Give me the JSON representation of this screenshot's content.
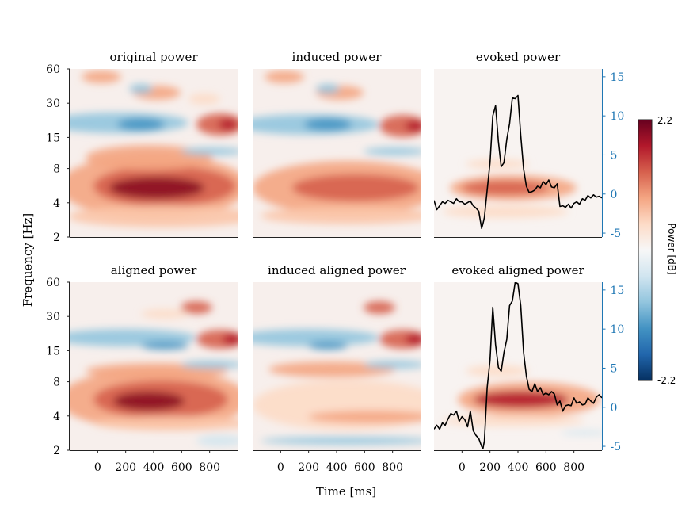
{
  "colors": {
    "evoked_axis": "#1f77b4",
    "trace": "#000000",
    "cmap_low": "#053061",
    "cmap_mid": "#f7f7f7",
    "cmap_high": "#67001f"
  },
  "labels": {
    "ylabel": "Frequency [Hz]",
    "xlabel": "Time [ms]",
    "colorbar": "Power [dB]"
  },
  "colorbar": {
    "max_label": "2.2",
    "min_label": "-2.2",
    "vmin": -2.2,
    "vmax": 2.2
  },
  "chart_data": [
    {
      "type": "heatmap",
      "title": "original power",
      "variant": "original",
      "grid": false,
      "yticks": [
        "2",
        "4",
        "8",
        "15",
        "30",
        "60"
      ],
      "xticks": [],
      "xlim": [
        -200,
        1000
      ],
      "ylim_hz": [
        2,
        60
      ]
    },
    {
      "type": "heatmap",
      "title": "induced power",
      "variant": "induced",
      "grid": false,
      "yticks": [],
      "xticks": [],
      "xlim": [
        -200,
        1000
      ],
      "ylim_hz": [
        2,
        60
      ]
    },
    {
      "type": "heatmap",
      "title": "evoked power",
      "variant": "evoked",
      "grid": false,
      "yticks": [],
      "xticks": [],
      "xlim": [
        -200,
        1000
      ],
      "ylim_hz": [
        2,
        60
      ],
      "right_axis": {
        "ticks": [
          "15",
          "10",
          "5",
          "0",
          "-5"
        ],
        "ylim": [
          -5.5,
          16
        ]
      },
      "trace": {
        "x": [
          -200,
          -180,
          -160,
          -140,
          -120,
          -100,
          -80,
          -60,
          -40,
          -20,
          0,
          20,
          40,
          60,
          80,
          100,
          120,
          140,
          150,
          160,
          180,
          200,
          220,
          240,
          260,
          280,
          300,
          320,
          340,
          360,
          380,
          400,
          420,
          440,
          460,
          480,
          500,
          520,
          540,
          560,
          580,
          600,
          620,
          640,
          660,
          680,
          700,
          720,
          740,
          760,
          780,
          800,
          820,
          840,
          860,
          880,
          900,
          920,
          940,
          960,
          980,
          1000
        ],
        "y": [
          -0.8,
          -2,
          -1.5,
          -1,
          -1.2,
          -0.8,
          -1,
          -1.2,
          -0.6,
          -1,
          -1,
          -1.3,
          -1.1,
          -0.9,
          -1.5,
          -1.8,
          -2.2,
          -4.4,
          -3.8,
          -3,
          0.5,
          4,
          10,
          11.3,
          6.7,
          3.5,
          4,
          7,
          9,
          12.3,
          12.2,
          12.6,
          7.5,
          3.2,
          1,
          0.2,
          0.3,
          0.5,
          1,
          0.8,
          1.6,
          1.2,
          1.8,
          0.9,
          0.8,
          1.3,
          -1.6,
          -1.5,
          -1.7,
          -1.3,
          -1.8,
          -1.2,
          -1,
          -1.3,
          -0.6,
          -0.8,
          -0.2,
          -0.5,
          -0.1,
          -0.4,
          -0.3,
          -0.5
        ]
      }
    },
    {
      "type": "heatmap",
      "title": "aligned power",
      "variant": "aligned",
      "grid": false,
      "yticks": [
        "2",
        "4",
        "8",
        "15",
        "30",
        "60"
      ],
      "xticks": [
        "0",
        "200",
        "400",
        "600",
        "800"
      ],
      "xlim": [
        -200,
        1000
      ],
      "ylim_hz": [
        2,
        60
      ]
    },
    {
      "type": "heatmap",
      "title": "induced aligned power",
      "variant": "induced_aligned",
      "grid": false,
      "yticks": [],
      "xticks": [
        "0",
        "200",
        "400",
        "600",
        "800"
      ],
      "xlim": [
        -200,
        1000
      ],
      "ylim_hz": [
        2,
        60
      ]
    },
    {
      "type": "heatmap",
      "title": "evoked aligned power",
      "variant": "evoked_aligned",
      "grid": false,
      "yticks": [],
      "xticks": [
        "0",
        "200",
        "400",
        "600",
        "800"
      ],
      "xlim": [
        -200,
        1000
      ],
      "ylim_hz": [
        2,
        60
      ],
      "right_axis": {
        "ticks": [
          "15",
          "10",
          "5",
          "0",
          "-5"
        ],
        "ylim": [
          -5.5,
          16
        ]
      },
      "trace": {
        "x": [
          -200,
          -180,
          -160,
          -140,
          -120,
          -100,
          -80,
          -60,
          -40,
          -20,
          0,
          20,
          40,
          60,
          80,
          100,
          120,
          140,
          150,
          160,
          180,
          200,
          220,
          240,
          260,
          280,
          300,
          320,
          340,
          360,
          380,
          400,
          420,
          440,
          460,
          480,
          500,
          520,
          540,
          560,
          580,
          600,
          620,
          640,
          660,
          680,
          700,
          720,
          740,
          760,
          780,
          800,
          820,
          840,
          860,
          880,
          900,
          920,
          940,
          960,
          980,
          1000
        ],
        "y": [
          -2.8,
          -2.3,
          -2.8,
          -2,
          -2.3,
          -1.5,
          -0.8,
          -1,
          -0.5,
          -1.8,
          -1.2,
          -1.6,
          -2.5,
          -0.5,
          -3,
          -3.6,
          -4,
          -5,
          -5.3,
          -4.3,
          2.5,
          6,
          12.8,
          8,
          5.1,
          4.6,
          7,
          8.7,
          13,
          13.6,
          16,
          15.8,
          13,
          7,
          4,
          2.3,
          2,
          3,
          2,
          2.5,
          1.6,
          1.8,
          1.6,
          2,
          1.7,
          0.3,
          0.8,
          -0.5,
          0.2,
          0.3,
          0.2,
          1.2,
          0.5,
          0.7,
          0.3,
          0.4,
          1.2,
          0.8,
          0.5,
          1.3,
          1.6,
          1.2
        ]
      }
    }
  ]
}
